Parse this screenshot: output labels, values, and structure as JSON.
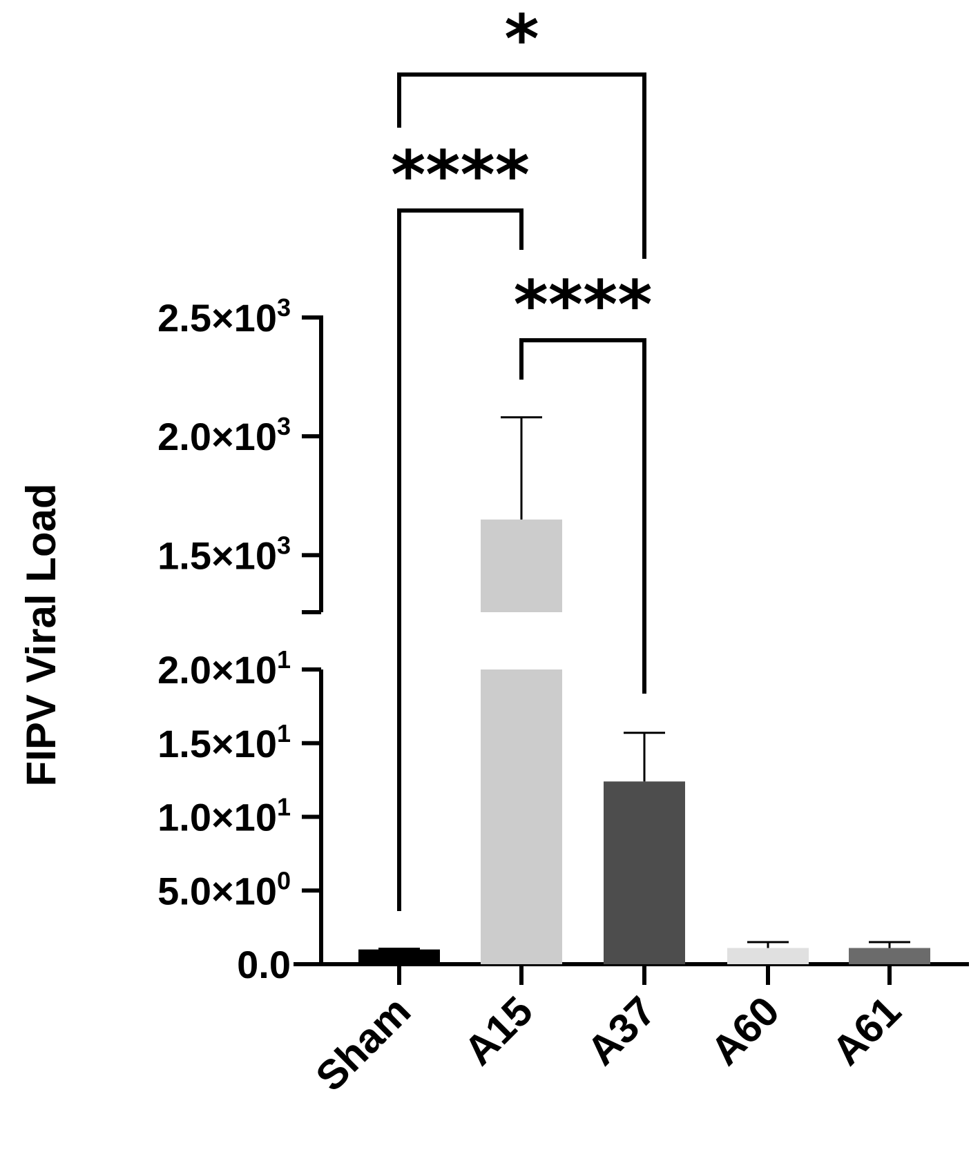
{
  "chart_data": {
    "type": "bar",
    "ylabel": "FIPV Viral Load",
    "xlabel": "",
    "title": "",
    "categories": [
      "Sham",
      "A15",
      "A37",
      "A60",
      "A61"
    ],
    "values": [
      1.0,
      1650,
      12.4,
      1.1,
      1.1
    ],
    "errors_upper": [
      1.05,
      2080,
      15.7,
      1.5,
      1.5
    ],
    "bar_colors": [
      "#000000",
      "#cccccc",
      "#4d4d4d",
      "#e0e0e0",
      "#6b6b6b"
    ],
    "y_axis_broken": true,
    "y_segments": [
      {
        "range": [
          0,
          20
        ],
        "ticks": [
          {
            "value": 0,
            "mantissa": "0.0",
            "exp": ""
          },
          {
            "value": 5,
            "mantissa": "5.0×10",
            "exp": "0"
          },
          {
            "value": 10,
            "mantissa": "1.0×10",
            "exp": "1"
          },
          {
            "value": 15,
            "mantissa": "1.5×10",
            "exp": "1"
          },
          {
            "value": 20,
            "mantissa": "2.0×10",
            "exp": "1"
          }
        ]
      },
      {
        "range": [
          1260,
          2500
        ],
        "ticks": [
          {
            "value": 1500,
            "mantissa": "1.5×10",
            "exp": "3"
          },
          {
            "value": 2000,
            "mantissa": "2.0×10",
            "exp": "3"
          },
          {
            "value": 2500,
            "mantissa": "2.5×10",
            "exp": "3"
          }
        ]
      }
    ],
    "significance": [
      {
        "from": "Sham",
        "to": "A37",
        "label": "*"
      },
      {
        "from": "Sham",
        "to": "A15",
        "label": "****"
      },
      {
        "from": "A15",
        "to": "A37",
        "label": "****"
      }
    ],
    "grid": false,
    "legend": "none"
  }
}
